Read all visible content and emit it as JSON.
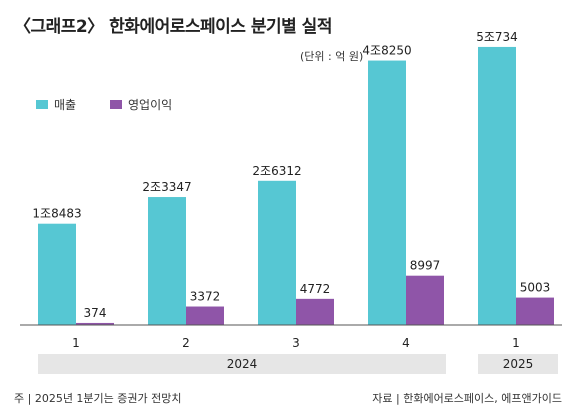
{
  "chart_data": {
    "type": "bar",
    "title": "〈그래프2〉 한화에어로스페이스 분기별 실적",
    "unit": "(단위 : 억 원)",
    "categories": [
      "1",
      "2",
      "3",
      "4",
      "1"
    ],
    "groups": [
      {
        "label": "2024",
        "count": 4
      },
      {
        "label": "2025",
        "count": 1
      }
    ],
    "series": [
      {
        "name": "매출",
        "color": "#56c7d3",
        "values": [
          18483,
          23347,
          26312,
          48250,
          50734
        ],
        "value_labels": [
          "1조8483",
          "2조3347",
          "2조6312",
          "4조8250",
          "5조734"
        ]
      },
      {
        "name": "영업이익",
        "color": "#8f55a8",
        "values": [
          374,
          3372,
          4772,
          8997,
          5003
        ],
        "value_labels": [
          "374",
          "3372",
          "4772",
          "8997",
          "5003"
        ]
      }
    ],
    "ylim": [
      0,
      52000
    ],
    "legend": "top-left",
    "grid": false
  },
  "footnotes": {
    "left": "주 | 2025년 1분기는 증권가 전망치",
    "right": "자료 | 한화에어로스페이스, 에프앤가이드"
  },
  "colors": {
    "group_band": "#e6e6e6",
    "axis": "#555555"
  }
}
